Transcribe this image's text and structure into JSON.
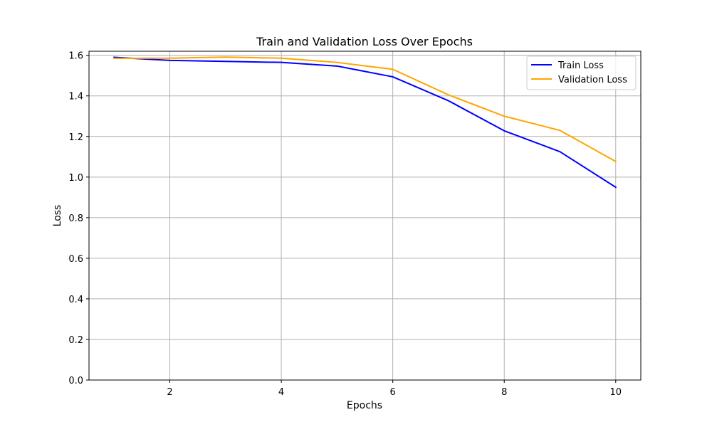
{
  "chart_data": {
    "type": "line",
    "title": "Train and Validation Loss Over Epochs",
    "xlabel": "Epochs",
    "ylabel": "Loss",
    "x": [
      1,
      2,
      3,
      4,
      5,
      6,
      7,
      8,
      9,
      10
    ],
    "xlim": [
      0.55,
      10.45
    ],
    "ylim": [
      0,
      1.62
    ],
    "xticks": [
      2,
      4,
      6,
      8,
      10
    ],
    "yticks": [
      0.0,
      0.2,
      0.4,
      0.6,
      0.8,
      1.0,
      1.2,
      1.4,
      1.6
    ],
    "xtick_labels": [
      "2",
      "4",
      "6",
      "8",
      "10"
    ],
    "ytick_labels": [
      "0.0",
      "0.2",
      "0.4",
      "0.6",
      "0.8",
      "1.0",
      "1.2",
      "1.4",
      "1.6"
    ],
    "grid": true,
    "legend_position": "top-right",
    "series": [
      {
        "name": "Train Loss",
        "color": "#0000ff",
        "values": [
          1.59,
          1.575,
          1.57,
          1.565,
          1.547,
          1.494,
          1.376,
          1.228,
          1.125,
          0.95
        ]
      },
      {
        "name": "Validation Loss",
        "color": "#ffa500",
        "values": [
          1.585,
          1.586,
          1.591,
          1.586,
          1.565,
          1.531,
          1.405,
          1.3,
          1.23,
          1.077
        ]
      }
    ]
  }
}
